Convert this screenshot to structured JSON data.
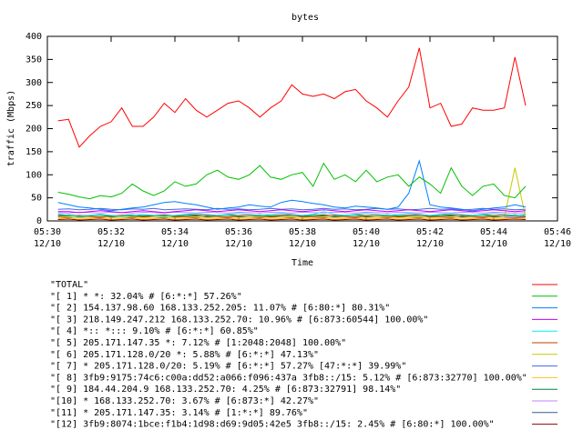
{
  "chart_data": {
    "type": "line",
    "title": "bytes",
    "xlabel": "Time",
    "ylabel": "traffic (Mbps)",
    "x": [
      "05:30:20",
      "05:30:40",
      "05:31:00",
      "05:31:20",
      "05:31:40",
      "05:32:00",
      "05:32:20",
      "05:32:40",
      "05:33:00",
      "05:33:20",
      "05:33:40",
      "05:34:00",
      "05:34:20",
      "05:34:40",
      "05:35:00",
      "05:35:20",
      "05:35:40",
      "05:36:00",
      "05:36:20",
      "05:36:40",
      "05:37:00",
      "05:37:20",
      "05:37:40",
      "05:38:00",
      "05:38:20",
      "05:38:40",
      "05:39:00",
      "05:39:20",
      "05:39:40",
      "05:40:00",
      "05:40:20",
      "05:40:40",
      "05:41:00",
      "05:41:20",
      "05:41:40",
      "05:42:00",
      "05:42:20",
      "05:42:40",
      "05:43:00",
      "05:43:20",
      "05:43:40",
      "05:44:00",
      "05:44:20",
      "05:44:40",
      "05:45:00"
    ],
    "xlim": [
      "05:30",
      "05:46"
    ],
    "xticks": [
      {
        "value": "05:30",
        "label": "05:30\n12/10"
      },
      {
        "value": "05:32",
        "label": "05:32\n12/10"
      },
      {
        "value": "05:34",
        "label": "05:34\n12/10"
      },
      {
        "value": "05:36",
        "label": "05:36\n12/10"
      },
      {
        "value": "05:38",
        "label": "05:38\n12/10"
      },
      {
        "value": "05:40",
        "label": "05:40\n12/10"
      },
      {
        "value": "05:42",
        "label": "05:42\n12/10"
      },
      {
        "value": "05:44",
        "label": "05:44\n12/10"
      },
      {
        "value": "05:46",
        "label": "05:46\n12/10"
      }
    ],
    "ylim": [
      0,
      400
    ],
    "yticks": [
      0,
      50,
      100,
      150,
      200,
      250,
      300,
      350,
      400
    ],
    "series": [
      {
        "name": "\"TOTAL\"",
        "color": "#ff0000",
        "values": [
          217,
          220,
          160,
          185,
          205,
          215,
          245,
          205,
          205,
          225,
          255,
          235,
          265,
          240,
          225,
          240,
          255,
          260,
          245,
          225,
          245,
          260,
          295,
          275,
          270,
          275,
          265,
          280,
          285,
          260,
          245,
          225,
          260,
          290,
          375,
          245,
          255,
          205,
          210,
          245,
          240,
          240,
          245,
          355,
          250
        ]
      },
      {
        "name": "\"[ 1] * *: 32.04% # [6:*:*] 57.26%\"",
        "color": "#00c000",
        "values": [
          62,
          58,
          52,
          48,
          55,
          52,
          60,
          80,
          65,
          55,
          65,
          85,
          75,
          80,
          100,
          110,
          95,
          90,
          100,
          120,
          95,
          90,
          100,
          105,
          75,
          125,
          90,
          100,
          85,
          110,
          85,
          95,
          100,
          75,
          95,
          80,
          60,
          115,
          75,
          55,
          75,
          80,
          55,
          50,
          75
        ]
      },
      {
        "name": "\"[ 2] 154.137.98.60 168.133.252.205: 11.07% # [6:80:*] 80.31%\"",
        "color": "#0080ff",
        "values": [
          40,
          35,
          30,
          28,
          25,
          22,
          25,
          28,
          30,
          35,
          40,
          42,
          38,
          35,
          30,
          25,
          28,
          30,
          35,
          32,
          30,
          40,
          45,
          42,
          38,
          35,
          30,
          28,
          32,
          30,
          28,
          25,
          30,
          60,
          130,
          35,
          30,
          28,
          25,
          22,
          25,
          28,
          30,
          35,
          30
        ]
      },
      {
        "name": "\"[ 3] 218.149.247.212 168.133.252.70: 10.96% # [6:873:60544] 100.00%\"",
        "color": "#c000ff",
        "values": [
          20,
          20,
          18,
          20,
          22,
          20,
          18,
          20,
          22,
          20,
          18,
          20,
          22,
          24,
          22,
          20,
          22,
          24,
          22,
          20,
          22,
          24,
          22,
          20,
          22,
          24,
          22,
          20,
          22,
          24,
          22,
          20,
          22,
          24,
          22,
          20,
          22,
          24,
          22,
          20,
          22,
          24,
          22,
          20,
          22
        ]
      },
      {
        "name": "\"[ 4] *:: *::: 9.10% # [6:*:*] 60.85%\"",
        "color": "#00eeee",
        "values": [
          15,
          12,
          10,
          12,
          14,
          12,
          10,
          12,
          14,
          12,
          10,
          12,
          14,
          16,
          14,
          12,
          14,
          16,
          14,
          12,
          14,
          16,
          14,
          12,
          14,
          20,
          14,
          12,
          14,
          16,
          14,
          12,
          14,
          16,
          14,
          12,
          14,
          16,
          14,
          12,
          14,
          16,
          14,
          12,
          14
        ]
      },
      {
        "name": "\"[ 5] 205.171.147.35 *: 7.12% # [1:2048:2048] 100.00%\"",
        "color": "#c04000",
        "values": [
          10,
          11,
          12,
          10,
          9,
          11,
          12,
          10,
          9,
          11,
          12,
          10,
          9,
          11,
          12,
          10,
          9,
          11,
          12,
          10,
          9,
          11,
          12,
          10,
          9,
          11,
          12,
          10,
          9,
          11,
          12,
          10,
          9,
          11,
          12,
          10,
          9,
          11,
          12,
          10,
          9,
          11,
          12,
          10,
          9
        ]
      },
      {
        "name": "\"[ 6] 205.171.128.0/20 *: 5.88% # [6:*:*] 47.13%\"",
        "color": "#c8c800",
        "values": [
          8,
          9,
          7,
          8,
          9,
          7,
          8,
          9,
          7,
          8,
          9,
          7,
          8,
          9,
          7,
          8,
          9,
          7,
          8,
          9,
          7,
          8,
          9,
          7,
          8,
          9,
          7,
          8,
          9,
          7,
          8,
          9,
          7,
          8,
          9,
          7,
          8,
          9,
          7,
          8,
          9,
          7,
          8,
          115,
          8
        ]
      },
      {
        "name": "\"[ 7] * 205.171.128.0/20: 5.19% # [6:*:*] 57.27% [47:*:*] 39.99%\"",
        "color": "#4169e1",
        "values": [
          25,
          26,
          24,
          25,
          27,
          25,
          24,
          26,
          25,
          27,
          24,
          25,
          26,
          25,
          24,
          27,
          25,
          26,
          24,
          25,
          27,
          25,
          26,
          24,
          25,
          27,
          25,
          26,
          24,
          25,
          27,
          25,
          26,
          24,
          25,
          27,
          25,
          26,
          24,
          25,
          27,
          25,
          26,
          24,
          25
        ]
      },
      {
        "name": "\"[ 8] 3fb9:9175:74c6:c00a:dd52:a066:f096:437a 3fb8::/15: 5.12% # [6:873:32770] 100.00%\"",
        "color": "#ffc020",
        "values": [
          5,
          6,
          4,
          5,
          6,
          4,
          5,
          6,
          4,
          5,
          6,
          4,
          5,
          6,
          4,
          5,
          6,
          4,
          5,
          6,
          4,
          5,
          6,
          4,
          5,
          6,
          4,
          5,
          6,
          4,
          5,
          6,
          4,
          5,
          6,
          4,
          5,
          6,
          4,
          5,
          6,
          4,
          5,
          6,
          5
        ]
      },
      {
        "name": "\"[ 9] 184.44.204.9 168.133.252.70: 4.25% # [6:873:32791] 98.14%\"",
        "color": "#008040",
        "values": [
          12,
          13,
          11,
          12,
          13,
          11,
          12,
          13,
          11,
          12,
          13,
          11,
          12,
          13,
          11,
          12,
          13,
          11,
          12,
          13,
          11,
          12,
          13,
          11,
          12,
          13,
          11,
          12,
          13,
          11,
          12,
          13,
          11,
          12,
          13,
          11,
          12,
          13,
          11,
          12,
          13,
          11,
          12,
          13,
          12
        ]
      },
      {
        "name": "\"[10] * 168.133.252.70: 3.67% # [6:873:*] 42.27%\"",
        "color": "#c080ff",
        "values": [
          18,
          17,
          19,
          18,
          17,
          19,
          18,
          17,
          19,
          18,
          17,
          19,
          18,
          17,
          19,
          18,
          17,
          19,
          18,
          17,
          19,
          18,
          17,
          19,
          18,
          17,
          19,
          18,
          17,
          19,
          18,
          17,
          19,
          18,
          17,
          19,
          18,
          17,
          19,
          18,
          17,
          19,
          18,
          17,
          18
        ]
      },
      {
        "name": "\"[11] * 205.171.147.35: 3.14% # [1:*:*] 89.76%\"",
        "color": "#306080",
        "values": [
          8,
          7,
          9,
          8,
          7,
          9,
          8,
          7,
          9,
          8,
          7,
          9,
          8,
          7,
          9,
          8,
          7,
          9,
          8,
          7,
          9,
          8,
          7,
          9,
          8,
          7,
          9,
          8,
          7,
          9,
          8,
          7,
          9,
          8,
          7,
          9,
          8,
          7,
          9,
          8,
          7,
          9,
          8,
          7,
          8
        ]
      },
      {
        "name": "\"[12] 3fb9:8074:1bce:f1b4:1d98:d69:9d05:42e5 3fb8::/15: 2.45% # [6:80:*] 100.00%\"",
        "color": "#8b0000",
        "values": [
          3,
          4,
          2,
          3,
          4,
          2,
          3,
          4,
          2,
          3,
          4,
          2,
          3,
          4,
          2,
          3,
          4,
          2,
          3,
          4,
          2,
          3,
          4,
          2,
          3,
          4,
          2,
          3,
          4,
          2,
          3,
          4,
          2,
          3,
          4,
          2,
          3,
          4,
          2,
          3,
          4,
          2,
          3,
          4,
          3
        ]
      }
    ]
  }
}
